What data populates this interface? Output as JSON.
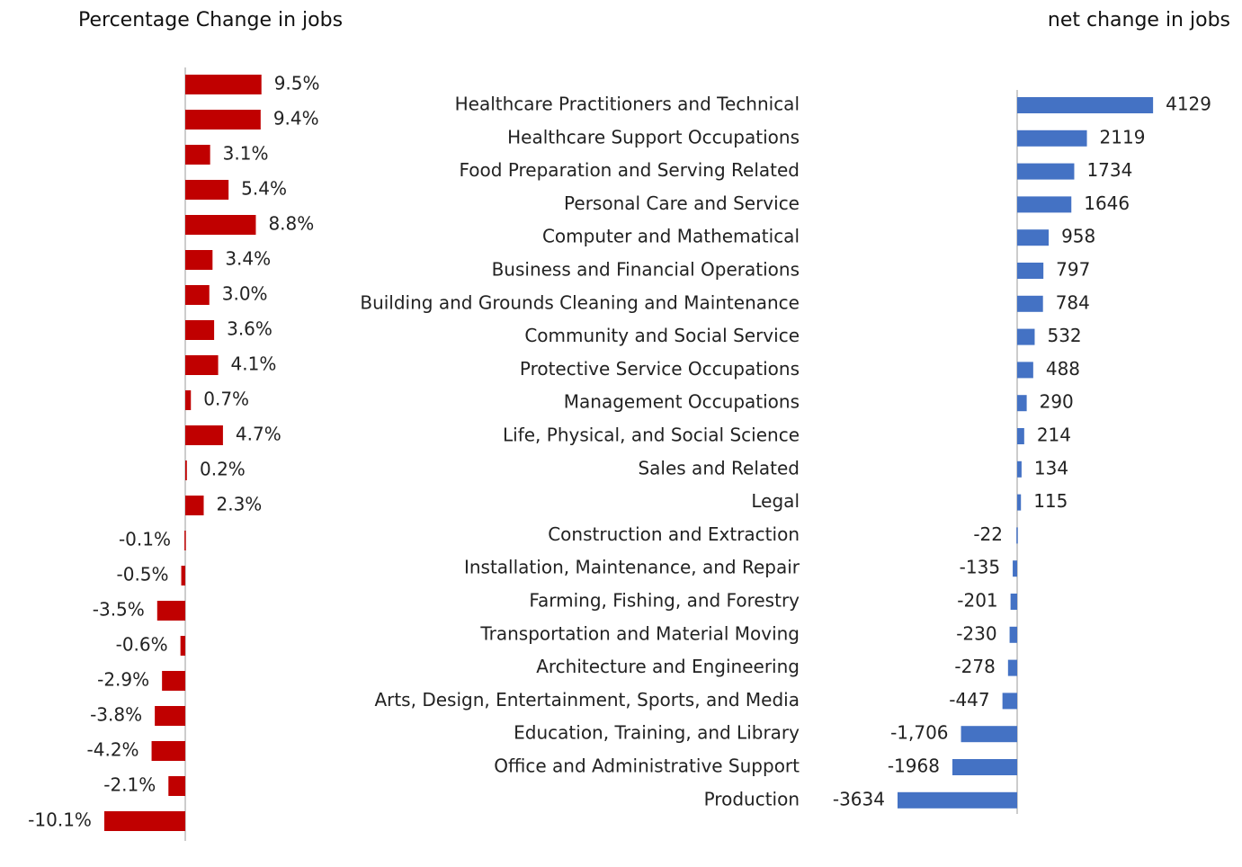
{
  "chart_data": [
    {
      "type": "bar",
      "orientation": "horizontal",
      "title": "Percentage Change in jobs",
      "color": "#c00000",
      "xlim": [
        -12,
        12
      ],
      "values": [
        9.5,
        9.4,
        3.1,
        5.4,
        8.8,
        3.4,
        3.0,
        3.6,
        4.1,
        0.7,
        4.7,
        0.2,
        2.3,
        -0.1,
        -0.5,
        -3.5,
        -0.6,
        -2.9,
        -3.8,
        -4.2,
        -2.1,
        -10.1
      ],
      "value_labels": [
        "9.5%",
        "9.4%",
        "3.1%",
        "5.4%",
        "8.8%",
        "3.4%",
        "3.0%",
        "3.6%",
        "4.1%",
        "0.7%",
        "4.7%",
        "0.2%",
        "2.3%",
        "-0.1%",
        "-0.5%",
        "-3.5%",
        "-0.6%",
        "-2.9%",
        "-3.8%",
        "-4.2%",
        "-2.1%",
        "-10.1%"
      ]
    },
    {
      "type": "bar",
      "orientation": "horizontal",
      "title": "net change in jobs",
      "color": "#4472c4",
      "xlim": [
        -5000,
        5000
      ],
      "categories": [
        "Healthcare Practitioners and Technical",
        "Healthcare Support Occupations",
        "Food Preparation and Serving Related",
        "Personal Care and Service",
        "Computer and Mathematical",
        "Business and Financial Operations",
        "Building and Grounds Cleaning and Maintenance",
        "Community and Social Service",
        "Protective Service Occupations",
        "Management Occupations",
        "Life, Physical, and Social Science",
        "Sales and Related",
        "Legal",
        "Construction and Extraction",
        "Installation, Maintenance, and Repair",
        "Farming, Fishing, and Forestry",
        "Transportation and Material Moving",
        "Architecture and Engineering",
        "Arts, Design, Entertainment, Sports, and Media",
        "Education, Training, and Library",
        "Office and Administrative Support",
        "Production"
      ],
      "values": [
        4129,
        2119,
        1734,
        1646,
        958,
        797,
        784,
        532,
        488,
        290,
        214,
        134,
        115,
        -22,
        -135,
        -201,
        -230,
        -278,
        -447,
        -1706,
        -1968,
        -3634
      ],
      "value_labels": [
        "4129",
        "2119",
        "1734",
        "1646",
        "958",
        "797",
        "784",
        "532",
        "488",
        "290",
        "214",
        "134",
        "115",
        "-22",
        "-135",
        "-201",
        "-230",
        "-278",
        "-447",
        "-1,706",
        "-1968",
        "-3634"
      ]
    }
  ]
}
